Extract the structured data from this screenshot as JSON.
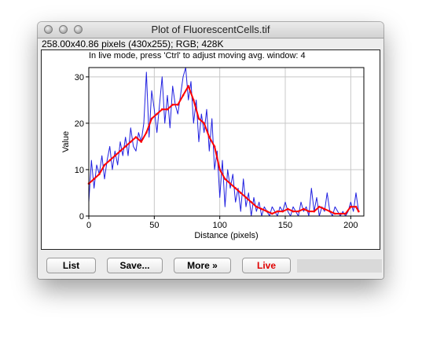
{
  "window": {
    "title": "Plot of FluorescentCells.tif"
  },
  "info_line": "258.00x40.86 pixels (430x255); RGB; 428K",
  "hint_line": "In live mode, press 'Ctrl' to adjust moving avg. window:  4",
  "buttons": {
    "list": "List",
    "save": "Save...",
    "more": "More »",
    "live": "Live"
  },
  "colors": {
    "raw_series": "#2020e0",
    "avg_series": "#ff0000",
    "live": "#e00000"
  },
  "chart_data": {
    "type": "line",
    "xlabel": "Distance (pixels)",
    "ylabel": "Value",
    "xlim": [
      0,
      210
    ],
    "ylim": [
      0,
      32
    ],
    "xticks": [
      0,
      50,
      100,
      150,
      200
    ],
    "yticks": [
      0,
      10,
      20,
      30
    ],
    "grid": true,
    "series": [
      {
        "key": "raw",
        "color": "#2020e0",
        "x": [
          0,
          2,
          4,
          6,
          8,
          10,
          12,
          14,
          16,
          18,
          20,
          22,
          24,
          26,
          28,
          30,
          32,
          34,
          36,
          38,
          40,
          42,
          44,
          46,
          48,
          50,
          52,
          54,
          56,
          58,
          60,
          62,
          64,
          66,
          68,
          70,
          72,
          74,
          76,
          78,
          80,
          82,
          84,
          86,
          88,
          90,
          92,
          94,
          96,
          98,
          100,
          102,
          104,
          106,
          108,
          110,
          112,
          114,
          116,
          118,
          120,
          122,
          124,
          126,
          128,
          130,
          132,
          134,
          136,
          138,
          140,
          142,
          144,
          146,
          148,
          150,
          152,
          154,
          156,
          158,
          160,
          162,
          164,
          166,
          168,
          170,
          172,
          174,
          176,
          178,
          180,
          182,
          184,
          186,
          188,
          190,
          192,
          194,
          196,
          198,
          200,
          202,
          204,
          206
        ],
        "y": [
          3,
          12,
          6,
          11,
          9,
          13,
          8,
          12,
          15,
          10,
          14,
          11,
          16,
          13,
          17,
          13,
          19,
          15,
          14,
          18,
          16,
          20,
          31,
          17,
          27,
          23,
          18,
          24,
          30,
          20,
          26,
          19,
          28,
          24,
          22,
          26,
          30,
          32,
          25,
          29,
          20,
          25,
          16,
          22,
          18,
          23,
          14,
          21,
          10,
          14,
          4,
          12,
          2,
          10,
          6,
          9,
          3,
          6,
          1,
          8,
          2,
          5,
          0,
          4,
          1,
          3,
          0,
          2,
          1,
          0,
          2,
          1,
          0,
          2,
          1,
          3,
          1,
          0,
          2,
          1,
          0,
          3,
          1,
          2,
          0,
          6,
          1,
          4,
          0,
          2,
          1,
          5,
          1,
          0,
          2,
          1,
          0,
          1,
          0,
          1,
          3,
          1,
          5,
          1
        ]
      },
      {
        "key": "avg",
        "color": "#ff0000",
        "x": [
          0,
          4,
          8,
          12,
          16,
          20,
          24,
          28,
          32,
          36,
          40,
          44,
          48,
          52,
          56,
          60,
          64,
          68,
          72,
          76,
          80,
          84,
          88,
          92,
          96,
          100,
          104,
          108,
          112,
          116,
          120,
          124,
          128,
          132,
          136,
          140,
          144,
          148,
          152,
          156,
          160,
          164,
          168,
          172,
          176,
          180,
          184,
          188,
          192,
          196,
          200,
          204,
          206
        ],
        "y": [
          7,
          8,
          9,
          11,
          12,
          13,
          14,
          15,
          16,
          17,
          16,
          18,
          21,
          22,
          23,
          23,
          24,
          24,
          26,
          28,
          25,
          21,
          20,
          17,
          15,
          10,
          8,
          7,
          6,
          5,
          4,
          3,
          2,
          1.5,
          1,
          0.5,
          1,
          1,
          1.5,
          1,
          1,
          1.5,
          1,
          1,
          2,
          1.5,
          1,
          0.5,
          0.5,
          0.5,
          2,
          2,
          1
        ]
      }
    ]
  }
}
